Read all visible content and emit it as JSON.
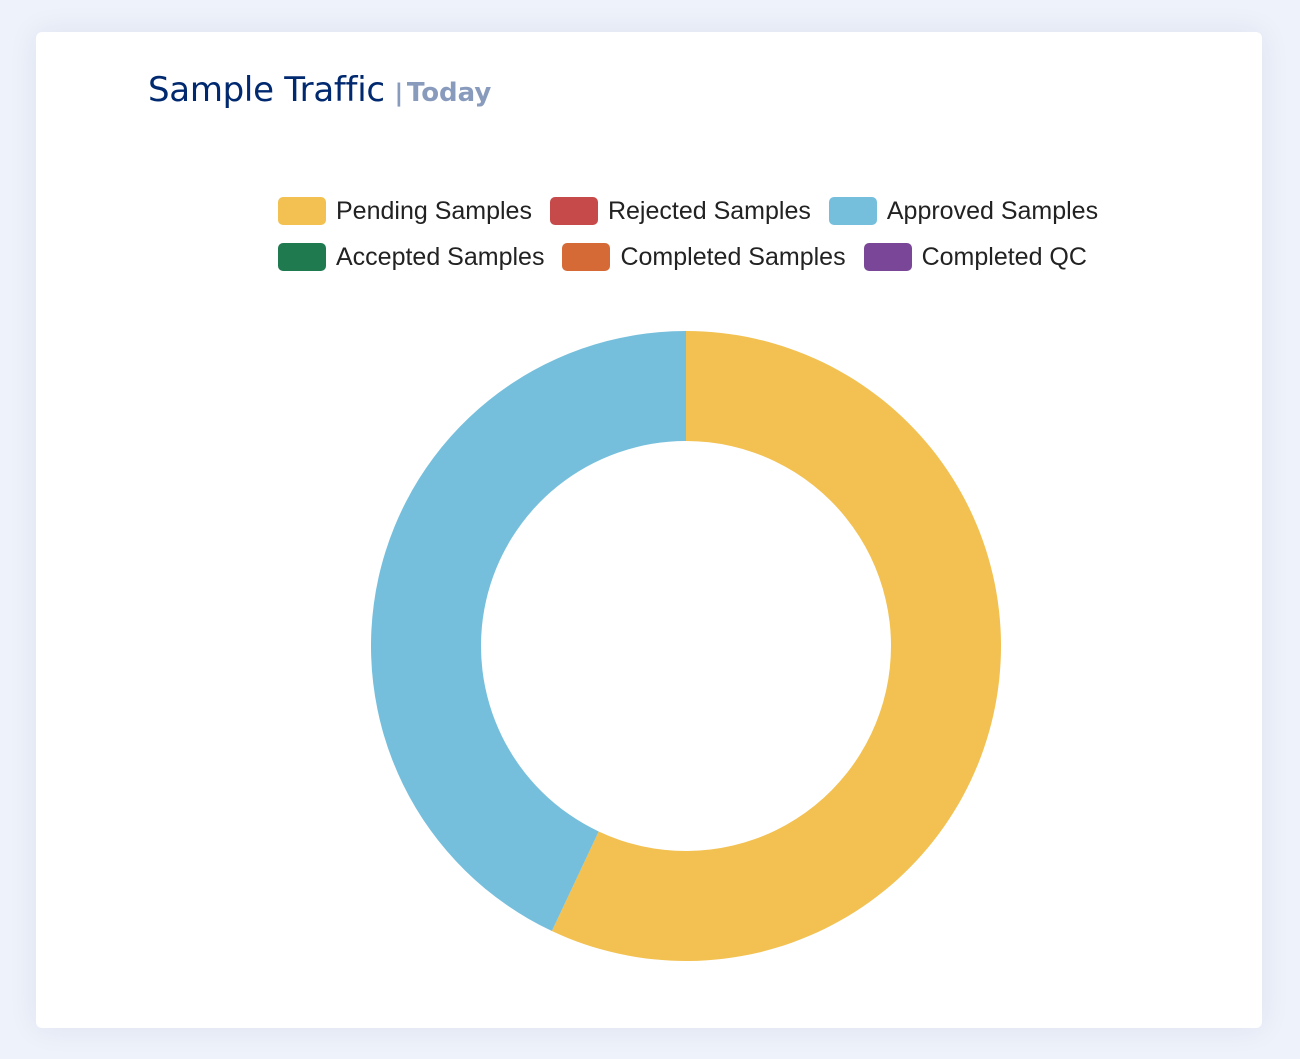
{
  "card": {
    "title": "Sample Traffic",
    "separator": "|",
    "subtitle": "Today"
  },
  "colors": {
    "pending": "#f2c151",
    "rejected": "#c74a4a",
    "approved": "#75bfdd",
    "accepted": "#1f7a4f",
    "completed": "#d66a37",
    "completed_qc": "#7a4798"
  },
  "chart_data": {
    "type": "pie",
    "style": "doughnut",
    "legend_position": "top",
    "categories": [
      "Pending Samples",
      "Rejected Samples",
      "Approved Samples",
      "Accepted Samples",
      "Completed Samples",
      "Completed QC"
    ],
    "values": [
      57,
      0,
      43,
      0,
      0,
      0
    ],
    "colors": [
      "#f2c151",
      "#c74a4a",
      "#75bfdd",
      "#1f7a4f",
      "#d66a37",
      "#7a4798"
    ]
  }
}
